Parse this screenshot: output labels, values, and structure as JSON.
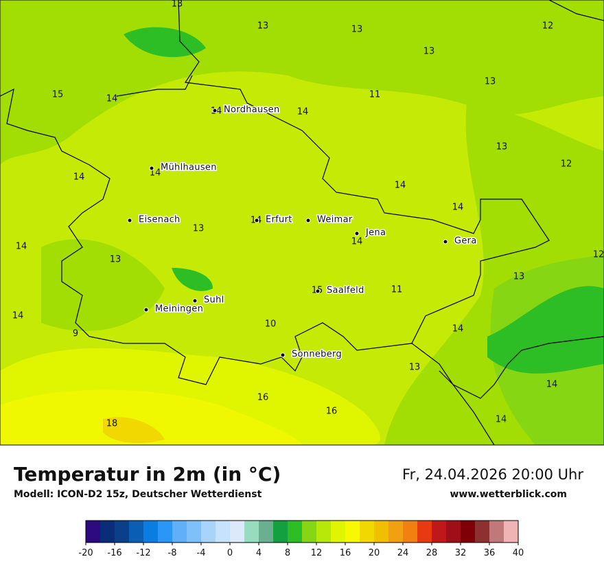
{
  "map": {
    "labels": [
      13,
      13,
      13,
      12,
      13,
      15,
      14,
      11,
      13,
      14,
      14,
      13,
      12,
      14,
      14,
      14,
      14,
      14,
      13,
      14,
      14,
      12,
      13,
      13,
      15,
      11,
      14,
      10,
      9,
      14,
      13,
      14,
      16,
      16,
      18,
      14
    ],
    "cities": [
      "Nordhausen",
      "Mühlhausen",
      "Eisenach",
      "Erfurt",
      "Weimar",
      "Jena",
      "Gera",
      "Suhl",
      "Meiningen",
      "Saalfeld",
      "Sonneberg"
    ]
  },
  "footer": {
    "title": "Temperatur in 2m (in °C)",
    "model": "Modell: ICON-D2 15z, Deutscher Wetterdienst",
    "date": "Fr, 24.04.2026 20:00 Uhr",
    "site": "www.wetterblick.com"
  },
  "colorbar": {
    "ticks": [
      -20,
      -16,
      -12,
      -8,
      -4,
      0,
      4,
      8,
      12,
      16,
      20,
      24,
      28,
      32,
      36,
      40
    ],
    "colors": [
      "#2e0a80",
      "#0a2d7a",
      "#0a3f8a",
      "#0a5fb5",
      "#0a7de0",
      "#2a96f5",
      "#5fb0f8",
      "#80c0fa",
      "#a8d4fc",
      "#c6e2fd",
      "#dce9fb",
      "#98dcc0",
      "#6ab090",
      "#12a040",
      "#2cbe24",
      "#86d614",
      "#b8e80a",
      "#e0f500",
      "#f8f800",
      "#f0d800",
      "#f0c000",
      "#f0a010",
      "#f08010",
      "#e83a10",
      "#c01818",
      "#a00e18",
      "#800008",
      "#8c3030",
      "#c07878",
      "#f0b4b4",
      "#fde0e0"
    ]
  }
}
